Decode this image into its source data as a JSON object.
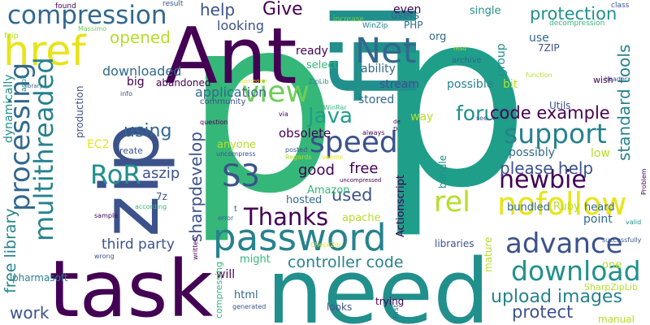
{
  "colors": {
    "background": "#ffffff",
    "dark_purple": "#440154",
    "indigo": "#3b528b",
    "blue": "#31688e",
    "teal_blue": "#26828e",
    "teal": "#21908c",
    "sea_green": "#1f9e89",
    "green": "#35b779",
    "light_green": "#6ece58",
    "lime": "#b5de2b",
    "yellow": "#e8e419"
  },
  "words": [
    {
      "text": "p",
      "color": "#35b779"
    },
    {
      "text": "p",
      "color": "#1f9e89"
    },
    {
      "text": "file",
      "color": "#21908c"
    },
    {
      "text": "Ant",
      "color": "#440154"
    },
    {
      "text": "zip",
      "color": "#3b528b"
    },
    {
      "text": "need",
      "color": "#21908c"
    },
    {
      "text": "task",
      "color": "#440154"
    },
    {
      "text": "password",
      "color": "#26828e"
    },
    {
      "text": "compression",
      "color": "#31688e"
    },
    {
      "text": "href",
      "color": "#e8e419"
    },
    {
      "text": "Net",
      "color": "#31688e"
    },
    {
      "text": "speed",
      "color": "#3b528b"
    },
    {
      "text": "support",
      "color": "#26828e"
    },
    {
      "text": "view",
      "color": "#6ece58"
    },
    {
      "text": "S3",
      "color": "#3b528b"
    },
    {
      "text": "Thanks",
      "color": "#440154"
    },
    {
      "text": "RoR",
      "color": "#21908c"
    },
    {
      "text": "newbie",
      "color": "#440154"
    },
    {
      "text": "nofollow",
      "color": "#e8e419"
    },
    {
      "text": "rel",
      "color": "#b5de2b"
    },
    {
      "text": "advance",
      "color": "#3b528b"
    },
    {
      "text": "download",
      "color": "#21908c"
    },
    {
      "text": "multithreaded",
      "color": "#26828e"
    },
    {
      "text": "processing",
      "color": "#31688e"
    },
    {
      "text": "help",
      "color": "#3b528b"
    },
    {
      "text": "Give",
      "color": "#440154"
    },
    {
      "text": "protection",
      "color": "#21908c"
    },
    {
      "text": "forum",
      "color": "#21908c"
    },
    {
      "text": "code example",
      "color": "#440154"
    },
    {
      "text": "please help",
      "color": "#3b528b"
    },
    {
      "text": "Java",
      "color": "#1f9e89"
    },
    {
      "text": "opened",
      "color": "#b5de2b"
    },
    {
      "text": "downloaded",
      "color": "#31688e"
    },
    {
      "text": "using",
      "color": "#31688e"
    },
    {
      "text": "controller code",
      "color": "#26828e"
    },
    {
      "text": "upload images",
      "color": "#26828e"
    },
    {
      "text": "protect",
      "color": "#3b528b"
    },
    {
      "text": "third party",
      "color": "#3b528b"
    },
    {
      "text": "work",
      "color": "#3b528b"
    },
    {
      "text": "good",
      "color": "#440154"
    },
    {
      "text": "free",
      "color": "#440154"
    },
    {
      "text": "used",
      "color": "#3b528b"
    },
    {
      "text": "standard tools",
      "color": "#26828e"
    },
    {
      "text": "free library",
      "color": "#26828e"
    },
    {
      "text": "sharpdevelop",
      "color": "#3b528b"
    },
    {
      "text": "aszip",
      "color": "#3b528b"
    },
    {
      "text": "Amazon",
      "color": "#35b779"
    },
    {
      "text": "hosted",
      "color": "#31688e"
    },
    {
      "text": "obsolete",
      "color": "#440154"
    },
    {
      "text": "anyone",
      "color": "#b5de2b"
    },
    {
      "text": "looking",
      "color": "#3b528b"
    },
    {
      "text": "application",
      "color": "#31688e"
    },
    {
      "text": "ready",
      "color": "#440154"
    },
    {
      "text": "select",
      "color": "#35b779"
    },
    {
      "text": "ability",
      "color": "#31688e"
    },
    {
      "text": "stream",
      "color": "#3b528b"
    },
    {
      "text": "stored",
      "color": "#31688e"
    },
    {
      "text": "way",
      "color": "#b5de2b"
    },
    {
      "text": "even",
      "color": "#440154"
    },
    {
      "text": "possible",
      "color": "#26828e"
    },
    {
      "text": "bit",
      "color": "#b5de2b"
    },
    {
      "text": "group",
      "color": "#21908c"
    },
    {
      "text": "org",
      "color": "#31688e"
    },
    {
      "text": "users",
      "color": "#31688e"
    },
    {
      "text": "PHP",
      "color": "#31688e"
    },
    {
      "text": "single",
      "color": "#21908c"
    },
    {
      "text": "use",
      "color": "#31688e"
    },
    {
      "text": "bundled",
      "color": "#31688e"
    },
    {
      "text": "Ruby",
      "color": "#b5de2b"
    },
    {
      "text": "heard",
      "color": "#31688e"
    },
    {
      "text": "low",
      "color": "#b5de2b"
    },
    {
      "text": "possibly",
      "color": "#31688e"
    },
    {
      "text": "point",
      "color": "#31688e"
    },
    {
      "text": "one",
      "color": "#b5de2b"
    },
    {
      "text": "manual",
      "color": "#b5de2b"
    },
    {
      "text": "libraries",
      "color": "#3b528b"
    },
    {
      "text": "apache",
      "color": "#b5de2b"
    },
    {
      "text": "might",
      "color": "#35b779"
    },
    {
      "text": "will",
      "color": "#440154"
    },
    {
      "text": "html",
      "color": "#31688e"
    },
    {
      "text": "looks",
      "color": "#3b528b"
    },
    {
      "text": "trying",
      "color": "#440154"
    },
    {
      "text": "Actionscript",
      "color": "#440154"
    },
    {
      "text": "bundle",
      "color": "#21908c"
    },
    {
      "text": "mature",
      "color": "#b5de2b"
    },
    {
      "text": "dynamically",
      "color": "#21908c"
    },
    {
      "text": "big",
      "color": "#440154"
    },
    {
      "text": "abandoned",
      "color": "#440154"
    },
    {
      "text": "EC2",
      "color": "#e8e419"
    },
    {
      "text": "create",
      "color": "#3b528b"
    },
    {
      "text": "7z",
      "color": "#3b528b"
    },
    {
      "text": "production",
      "color": "#3b528b"
    },
    {
      "text": "pharmasoft",
      "color": "#26828e"
    },
    {
      "text": "compressing",
      "color": "#35b779"
    },
    {
      "text": "Utils",
      "color": "#3b528b"
    },
    {
      "text": "SharpZipLib",
      "color": "#b5de2b"
    },
    {
      "text": "7ZIP",
      "color": "#3b528b"
    },
    {
      "text": "archive",
      "color": "#31688e"
    },
    {
      "text": "wish",
      "color": "#440154"
    },
    {
      "text": "function",
      "color": "#b5de2b"
    },
    {
      "text": "header",
      "color": "#3b528b"
    },
    {
      "text": "class",
      "color": "#3b528b"
    },
    {
      "text": "decompression",
      "color": "#35b779"
    },
    {
      "text": "result",
      "color": "#3b528b"
    },
    {
      "text": "increase",
      "color": "#6ece58"
    },
    {
      "text": "WinZip",
      "color": "#26828e"
    },
    {
      "text": "found",
      "color": "#440154"
    },
    {
      "text": "fzip",
      "color": "#b5de2b"
    },
    {
      "text": "Massimo",
      "color": "#6ece58"
    },
    {
      "text": "aspx",
      "color": "#21908c"
    },
    {
      "text": "library",
      "color": "#31688e"
    },
    {
      "text": "someone",
      "color": "#e8e419"
    },
    {
      "text": "ZipLib",
      "color": "#26828e"
    },
    {
      "text": "community",
      "color": "#3b528b"
    },
    {
      "text": "question",
      "color": "#440154"
    },
    {
      "text": "info",
      "color": "#3b528b"
    },
    {
      "text": "WinRar",
      "color": "#35b779"
    },
    {
      "text": "via",
      "color": "#440154"
    },
    {
      "text": "uncompress",
      "color": "#3b528b"
    },
    {
      "text": "posted",
      "color": "#3b528b"
    },
    {
      "text": "Regards",
      "color": "#b5de2b"
    },
    {
      "text": "seems",
      "color": "#e8e419"
    },
    {
      "text": "always",
      "color": "#440154"
    },
    {
      "text": "uncompressed",
      "color": "#440154"
    },
    {
      "text": "see",
      "color": "#3b528b"
    },
    {
      "text": "according",
      "color": "#35b779"
    },
    {
      "text": "sample",
      "color": "#440154"
    },
    {
      "text": "wrong",
      "color": "#3b528b"
    },
    {
      "text": "written",
      "color": "#440154"
    },
    {
      "text": "error",
      "color": "#31688e"
    },
    {
      "text": "CheckZip",
      "color": "#e8e419"
    },
    {
      "text": "t",
      "color": "#3b528b"
    },
    {
      "text": "valid",
      "color": "#21908c"
    },
    {
      "text": "Problem",
      "color": "#440154"
    },
    {
      "text": "successfully",
      "color": "#3b528b"
    },
    {
      "text": "generated",
      "color": "#3b528b"
    },
    {
      "text": "First",
      "color": "#31688e"
    },
    {
      "text": "read",
      "color": "#b5de2b"
    },
    {
      "text": "de",
      "color": "#440154"
    },
    {
      "text": "D",
      "color": "#440154"
    }
  ]
}
